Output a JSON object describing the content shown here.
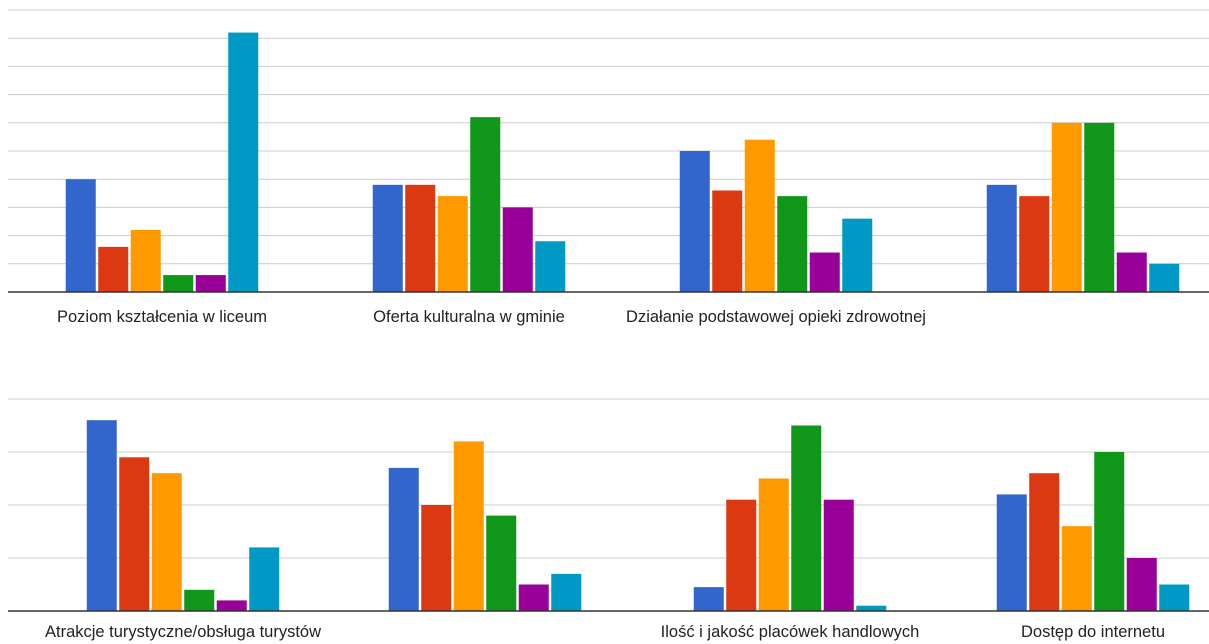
{
  "series_colors": [
    "#3366cc",
    "#dc3912",
    "#ff9900",
    "#109618",
    "#990099",
    "#0099c6"
  ],
  "chart_data": [
    {
      "type": "bar",
      "grid": true,
      "legend": "none",
      "ylim": [
        0,
        50
      ],
      "categories": [
        "Poziom kształcenia w liceum",
        "Oferta kulturalna w gminie",
        "Działanie podstawowej opieki zdrowotnej",
        ""
      ],
      "series": [
        {
          "values": [
            20,
            19,
            25,
            19
          ]
        },
        {
          "values": [
            8,
            19,
            18,
            17
          ]
        },
        {
          "values": [
            11,
            17,
            27,
            30
          ]
        },
        {
          "values": [
            3,
            31,
            17,
            30
          ]
        },
        {
          "values": [
            3,
            15,
            7,
            7
          ]
        },
        {
          "values": [
            46,
            9,
            13,
            5
          ]
        }
      ]
    },
    {
      "type": "bar",
      "grid": true,
      "legend": "none",
      "ylim": [
        0,
        40
      ],
      "categories": [
        "Atrakcje turystyczne/obsługa turystów",
        "",
        "Ilość i jakość placówek handlowych",
        "Dostęp do internetu"
      ],
      "series": [
        {
          "values": [
            36,
            27,
            4.5,
            22
          ]
        },
        {
          "values": [
            29,
            20,
            21,
            26
          ]
        },
        {
          "values": [
            26,
            32,
            25,
            16
          ]
        },
        {
          "values": [
            4,
            18,
            35,
            30
          ]
        },
        {
          "values": [
            2,
            5,
            21,
            10
          ]
        },
        {
          "values": [
            12,
            7,
            1,
            5
          ]
        }
      ]
    }
  ]
}
